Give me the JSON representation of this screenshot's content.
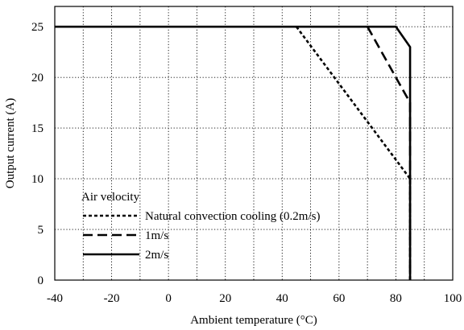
{
  "chart_data": {
    "type": "line",
    "title": "",
    "xlabel": "Ambient temperature (°C)",
    "ylabel": "Output current (A)",
    "xlim": [
      -40,
      100
    ],
    "ylim": [
      0,
      27
    ],
    "x_ticks": [
      -40,
      -20,
      0,
      20,
      40,
      60,
      80,
      100
    ],
    "y_ticks": [
      0,
      5,
      10,
      15,
      20,
      25
    ],
    "x_tick_labels": [
      "-40",
      "-20",
      "0",
      "20",
      "40",
      "60",
      "80",
      "100"
    ],
    "y_tick_labels": [
      "0",
      "5",
      "10",
      "15",
      "20",
      "25"
    ],
    "grid": true,
    "legend_title": "Air velocity",
    "legend_position": "bottom-left",
    "series": [
      {
        "name": "Natural convection cooling (0.2m/s)",
        "style": "short-dash",
        "x": [
          45,
          85,
          85
        ],
        "y": [
          25,
          10,
          0
        ]
      },
      {
        "name": "1m/s",
        "style": "long-dash",
        "x": [
          70,
          85,
          85
        ],
        "y": [
          25,
          17.5,
          0
        ]
      },
      {
        "name": "2m/s",
        "style": "solid",
        "x": [
          -40,
          80,
          85,
          85
        ],
        "y": [
          25,
          25,
          23,
          0
        ]
      }
    ]
  }
}
